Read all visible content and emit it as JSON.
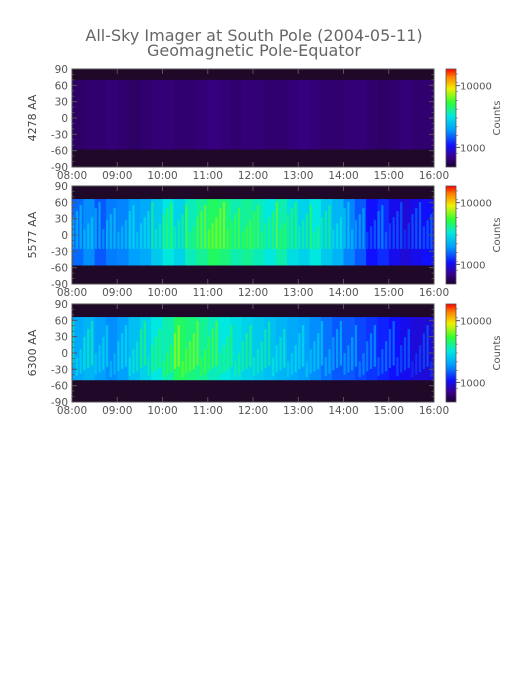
{
  "chart_data": {
    "type": "heatmap",
    "title": "All-Sky Imager at South Pole (2004-05-11)",
    "subtitle": "Geomagnetic Pole-Equator",
    "x_tick_labels": [
      "08:00",
      "09:00",
      "10:00",
      "11:00",
      "12:00",
      "13:00",
      "14:00",
      "15:00",
      "16:00"
    ],
    "y_tick_labels": [
      "90",
      "60",
      "30",
      "0",
      "-30",
      "-60",
      "-90"
    ],
    "y_ticks": [
      90,
      60,
      30,
      0,
      -30,
      -60,
      -90
    ],
    "ylim": [
      -90,
      90
    ],
    "colorbar": {
      "label": "Counts",
      "tick_labels": [
        "10000",
        "1000"
      ],
      "scale": "log"
    },
    "panels": [
      {
        "ylabel": "4278 AA",
        "intensity": "low",
        "column_levels": [
          0.06,
          0.07,
          0.07,
          0.08,
          0.07,
          0.06,
          0.07,
          0.08,
          0.08,
          0.07,
          0.07,
          0.08,
          0.09,
          0.08,
          0.07,
          0.08,
          0.08,
          0.07,
          0.07,
          0.08,
          0.09,
          0.08,
          0.07,
          0.07,
          0.08,
          0.08,
          0.07,
          0.06,
          0.07,
          0.08,
          0.07,
          0.07
        ]
      },
      {
        "ylabel": "5577 AA",
        "intensity": "medium",
        "column_levels": [
          0.32,
          0.36,
          0.3,
          0.34,
          0.35,
          0.38,
          0.4,
          0.46,
          0.52,
          0.48,
          0.55,
          0.58,
          0.62,
          0.6,
          0.56,
          0.58,
          0.55,
          0.52,
          0.56,
          0.5,
          0.48,
          0.52,
          0.46,
          0.42,
          0.35,
          0.3,
          0.22,
          0.25,
          0.2,
          0.18,
          0.2,
          0.22
        ]
      },
      {
        "ylabel": "6300 AA",
        "intensity": "medium",
        "column_levels": [
          0.4,
          0.42,
          0.38,
          0.36,
          0.38,
          0.44,
          0.48,
          0.52,
          0.56,
          0.62,
          0.6,
          0.58,
          0.55,
          0.52,
          0.5,
          0.48,
          0.46,
          0.44,
          0.42,
          0.4,
          0.38,
          0.36,
          0.33,
          0.3,
          0.3,
          0.28,
          0.26,
          0.24,
          0.22,
          0.2,
          0.18,
          0.18
        ]
      }
    ]
  }
}
